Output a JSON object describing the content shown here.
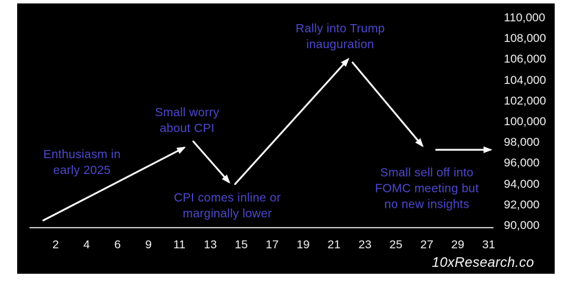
{
  "page": {
    "watermark": "10xResearch.co",
    "colors": {
      "page_background": "#ffffff",
      "panel_background": "#000000",
      "annotation_text": "#4e48cf",
      "arrow": "#ffffff",
      "axis_line": "#bdbdbd",
      "tick_text": "#f5f5f5",
      "watermark_text": "#fafafa"
    }
  },
  "chart_data": {
    "type": "line",
    "title": "",
    "xlabel": "",
    "ylabel": "",
    "legend": "none",
    "grid": false,
    "x_tick_labels": [
      "2",
      "4",
      "6",
      "9",
      "11",
      "13",
      "15",
      "17",
      "19",
      "21",
      "23",
      "25",
      "27",
      "29",
      "31"
    ],
    "y_tick_labels": [
      "110,000",
      "108,000",
      "106,000",
      "104,000",
      "102,000",
      "100,000",
      "98,000",
      "96,000",
      "94,000",
      "92,000",
      "90,000"
    ],
    "ylim": [
      90000,
      110000
    ],
    "xlim_days": [
      1,
      31
    ],
    "segments": [
      {
        "name": "rise-early-january",
        "points": [
          {
            "day": 1.2,
            "price": 90500
          },
          {
            "day": 11.3,
            "price": 97500
          }
        ]
      },
      {
        "name": "cpi-dip",
        "points": [
          {
            "day": 11.9,
            "price": 98100
          },
          {
            "day": 14.2,
            "price": 94200
          }
        ]
      },
      {
        "name": "rally-into-inauguration",
        "points": [
          {
            "day": 14.6,
            "price": 94000
          },
          {
            "day": 21.9,
            "price": 106000
          }
        ]
      },
      {
        "name": "post-peak-sell-off",
        "points": [
          {
            "day": 22.2,
            "price": 105700
          },
          {
            "day": 26.7,
            "price": 97700
          }
        ]
      },
      {
        "name": "flat-into-month-end",
        "points": [
          {
            "day": 27.6,
            "price": 97300
          },
          {
            "day": 31.1,
            "price": 97300
          }
        ]
      }
    ],
    "annotations": [
      {
        "name": "annotation-enthusiasm",
        "lines": [
          "Enthusiasm in",
          "early 2025"
        ],
        "anchor": {
          "day": 3.7,
          "price": 96100
        }
      },
      {
        "name": "annotation-small-worry-cpi",
        "lines": [
          "Small worry",
          "about CPI"
        ],
        "anchor": {
          "day": 11.5,
          "price": 100100
        }
      },
      {
        "name": "annotation-cpi-inline",
        "lines": [
          "CPI comes inline or",
          "marginally lower"
        ],
        "anchor": {
          "day": 14.1,
          "price": 91900
        }
      },
      {
        "name": "annotation-rally-trump",
        "lines": [
          "Rally into Trump",
          "inauguration"
        ],
        "anchor": {
          "day": 21.4,
          "price": 108200
        }
      },
      {
        "name": "annotation-fomc-selloff",
        "lines": [
          "Small sell off into",
          "FOMC meeting but",
          "no new insights"
        ],
        "anchor": {
          "day": 27.0,
          "price": 93600
        }
      }
    ]
  }
}
